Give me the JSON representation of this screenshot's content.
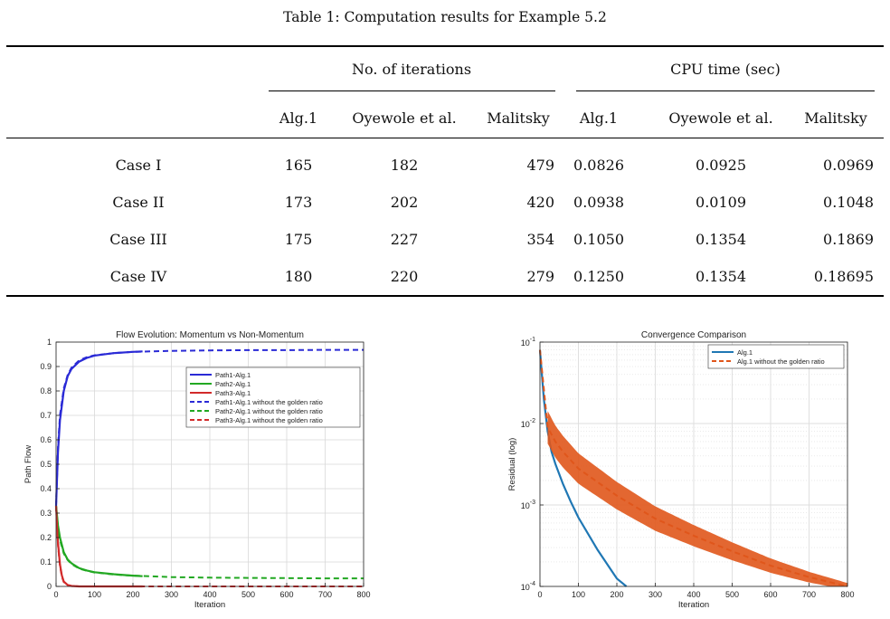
{
  "table": {
    "caption": "Table 1: Computation results for Example 5.2",
    "group_headers": [
      "No. of iterations",
      "CPU time (sec)"
    ],
    "col_headers": [
      "Alg.1",
      "Oyewole et al.",
      "Malitsky",
      "Alg.1",
      "Oyewole et al.",
      "Malitsky"
    ],
    "rows": [
      {
        "label": "Case I",
        "values": [
          "165",
          "182",
          "479",
          "0.0826",
          "0.0925",
          "0.0969"
        ]
      },
      {
        "label": "Case II",
        "values": [
          "173",
          "202",
          "420",
          "0.0938",
          "0.0109",
          "0.1048"
        ]
      },
      {
        "label": "Case III",
        "values": [
          "175",
          "227",
          "354",
          "0.1050",
          "0.1354",
          "0.1869"
        ]
      },
      {
        "label": "Case IV",
        "values": [
          "180",
          "220",
          "279",
          "0.1250",
          "0.1354",
          "0.18695"
        ]
      }
    ]
  },
  "chart_data": [
    {
      "type": "line",
      "title": "Flow Evolution: Momentum vs Non-Momentum",
      "xlabel": "Iteration",
      "ylabel": "Path Flow",
      "xlim": [
        0,
        800
      ],
      "ylim": [
        0,
        1
      ],
      "xticks": [
        "0",
        "100",
        "200",
        "300",
        "400",
        "500",
        "600",
        "700",
        "800"
      ],
      "yticks": [
        "0",
        "0.1",
        "0.2",
        "0.3",
        "0.4",
        "0.5",
        "0.6",
        "0.7",
        "0.8",
        "0.9",
        "1"
      ],
      "grid": true,
      "legend_position": "upper-right",
      "series": [
        {
          "name": "Path1-Alg.1",
          "color": "#2a2ad6",
          "dash": false,
          "x": [
            0,
            5,
            10,
            20,
            30,
            40,
            60,
            80,
            100,
            150,
            200,
            225
          ],
          "y": [
            0.33,
            0.55,
            0.68,
            0.8,
            0.86,
            0.89,
            0.92,
            0.935,
            0.945,
            0.955,
            0.96,
            0.962
          ]
        },
        {
          "name": "Path2-Alg.1",
          "color": "#22a822",
          "dash": false,
          "x": [
            0,
            5,
            10,
            20,
            30,
            40,
            60,
            80,
            100,
            150,
            200,
            225
          ],
          "y": [
            0.33,
            0.25,
            0.2,
            0.14,
            0.11,
            0.095,
            0.075,
            0.065,
            0.058,
            0.05,
            0.044,
            0.042
          ]
        },
        {
          "name": "Path3-Alg.1",
          "color": "#d22a2a",
          "dash": false,
          "x": [
            0,
            5,
            10,
            15,
            20,
            30,
            40,
            60,
            100,
            225
          ],
          "y": [
            0.33,
            0.18,
            0.09,
            0.045,
            0.02,
            0.006,
            0.002,
            0.0,
            0.0,
            0.0
          ]
        },
        {
          "name": "Path1-Alg.1 without the golden ratio",
          "color": "#2a2ad6",
          "dash": true,
          "x": [
            0,
            5,
            10,
            20,
            30,
            40,
            60,
            80,
            100,
            150,
            200,
            300,
            400,
            500,
            600,
            700,
            800
          ],
          "y": [
            0.33,
            0.57,
            0.7,
            0.81,
            0.865,
            0.895,
            0.925,
            0.938,
            0.946,
            0.955,
            0.96,
            0.964,
            0.966,
            0.967,
            0.967,
            0.968,
            0.968
          ]
        },
        {
          "name": "Path2-Alg.1 without the golden ratio",
          "color": "#22a822",
          "dash": true,
          "x": [
            0,
            5,
            10,
            20,
            30,
            40,
            60,
            80,
            100,
            150,
            200,
            300,
            400,
            500,
            600,
            700,
            800
          ],
          "y": [
            0.33,
            0.24,
            0.19,
            0.135,
            0.108,
            0.092,
            0.073,
            0.064,
            0.057,
            0.049,
            0.044,
            0.038,
            0.036,
            0.035,
            0.034,
            0.033,
            0.033
          ]
        },
        {
          "name": "Path3-Alg.1 without the golden ratio",
          "color": "#d22a2a",
          "dash": true,
          "x": [
            0,
            5,
            10,
            15,
            20,
            30,
            40,
            60,
            100,
            800
          ],
          "y": [
            0.33,
            0.17,
            0.085,
            0.04,
            0.018,
            0.005,
            0.002,
            0.0,
            0.0,
            0.0
          ]
        }
      ]
    },
    {
      "type": "line",
      "title": "Convergence Comparison",
      "xlabel": "Iteration",
      "ylabel": "Residual (log)",
      "xlim": [
        0,
        800
      ],
      "ylim": [
        0.0001,
        0.1
      ],
      "yscale": "log",
      "xticks": [
        "0",
        "100",
        "200",
        "300",
        "400",
        "500",
        "600",
        "700",
        "800"
      ],
      "yticks": [
        "10-4",
        "10-3",
        "10-2",
        "10-1"
      ],
      "grid": true,
      "legend_position": "upper-right",
      "series": [
        {
          "name": "Alg.1",
          "color": "#1f77b4",
          "dash": false,
          "x": [
            0,
            5,
            10,
            20,
            30,
            40,
            60,
            80,
            100,
            150,
            200,
            225
          ],
          "y": [
            0.08,
            0.04,
            0.02,
            0.008,
            0.0045,
            0.0032,
            0.0018,
            0.0011,
            0.0007,
            0.00028,
            0.000125,
            0.0001
          ]
        },
        {
          "name": "Alg.1 without the golden ratio",
          "color": "#e0561b",
          "dash": true,
          "x": [
            0,
            20,
            40,
            60,
            100,
            200,
            300,
            400,
            500,
            600,
            700,
            800
          ],
          "y": [
            0.08,
            0.009,
            0.006,
            0.0045,
            0.0028,
            0.0013,
            0.00068,
            0.00042,
            0.00027,
            0.00018,
            0.00013,
            0.0001
          ]
        }
      ]
    }
  ]
}
